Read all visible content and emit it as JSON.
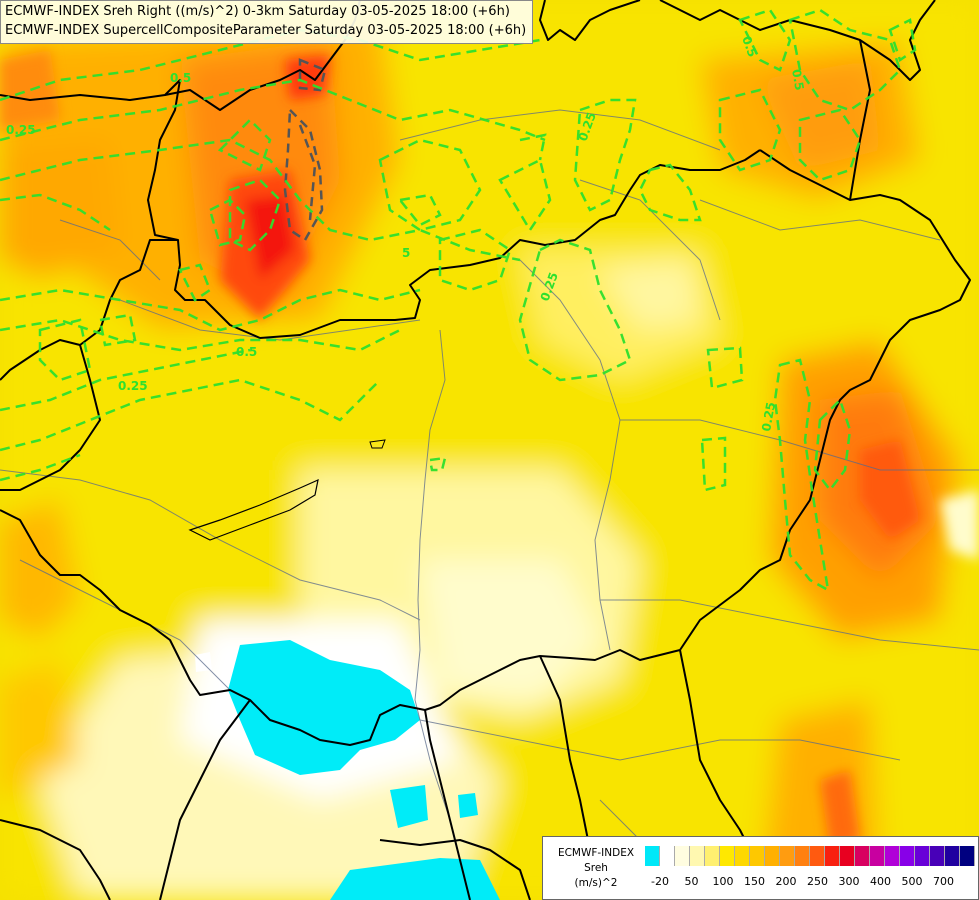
{
  "title": {
    "line1": "ECMWF-INDEX Sreh Right ((m/s)^2) 0-3km Saturday 03-05-2025 18:00 (+6h)",
    "line2": "ECMWF-INDEX SupercellCompositeParameter Saturday 03-05-2025 18:00 (+6h)"
  },
  "legend": {
    "model": "ECMWF-INDEX",
    "variable": "Sreh",
    "unit": "(m/s)^2",
    "colors": [
      "#00e8f8",
      "#ffffff",
      "#fffde0",
      "#fff8b0",
      "#fff070",
      "#ffe800",
      "#fed800",
      "#fec800",
      "#ffb000",
      "#ff9c10",
      "#ff8010",
      "#ff5a10",
      "#f82010",
      "#e80020",
      "#d80060",
      "#c800a0",
      "#b000d8",
      "#8800e8",
      "#6800d8",
      "#4800b8",
      "#2000a0",
      "#000080"
    ],
    "tick_labels": [
      "-20",
      "50",
      "100",
      "150",
      "200",
      "250",
      "300",
      "400",
      "500",
      "700"
    ]
  },
  "contour_labels": [
    "0.25",
    "0.5",
    "0.25",
    "0.25",
    "0.5",
    "0.25",
    "0.5",
    "0.25",
    "0.5",
    "5"
  ],
  "colors": {
    "scp_contour": "#2ee02e",
    "border": "#000000",
    "river": "#5a6a8a"
  }
}
